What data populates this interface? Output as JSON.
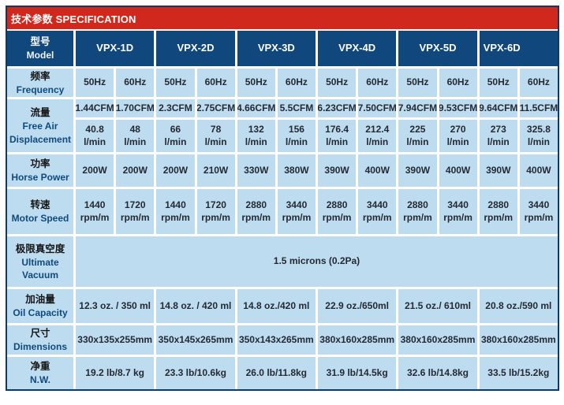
{
  "title": "技术参数 SPECIFICATION",
  "colors": {
    "header_red": "#d1281e",
    "header_blue": "#10477d",
    "cell_blue": "#bedcf0"
  },
  "table": {
    "model": {
      "label_zh": "型号",
      "label_en": "Model",
      "values": [
        "VPX-1D",
        "VPX-2D",
        "VPX-3D",
        "VPX-4D",
        "VPX-5D",
        "VPX-6D"
      ]
    },
    "frequency": {
      "label_zh": "频率",
      "label_en": "Frequency",
      "values": [
        "50Hz",
        "60Hz",
        "50Hz",
        "60Hz",
        "50Hz",
        "60Hz",
        "50Hz",
        "60Hz",
        "50Hz",
        "60Hz",
        "50Hz",
        "60Hz"
      ]
    },
    "flow": {
      "label_zh": "流量",
      "label_en1": "Free Air",
      "label_en2": "Displacement",
      "cfm": [
        "1.44CFM",
        "1.70CFM",
        "2.3CFM",
        "2.75CFM",
        "4.66CFM",
        "5.5CFM",
        "6.23CFM",
        "7.50CFM",
        "7.94CFM",
        "9.53CFM",
        "9.64CFM",
        "11.5CFM"
      ],
      "lmin": [
        "40.8",
        "48",
        "66",
        "78",
        "132",
        "156",
        "176.4",
        "212.4",
        "225",
        "270",
        "273",
        "325.8"
      ],
      "lmin_unit": "l/min"
    },
    "power": {
      "label_zh": "功率",
      "label_en": "Horse Power",
      "values": [
        "200W",
        "200W",
        "200W",
        "210W",
        "330W",
        "380W",
        "390W",
        "400W",
        "390W",
        "400W",
        "390W",
        "400W"
      ]
    },
    "speed": {
      "label_zh": "转速",
      "label_en": "Motor Speed",
      "values": [
        "1440",
        "1720",
        "1440",
        "1720",
        "2880",
        "3440",
        "2880",
        "3440",
        "2880",
        "3440",
        "2880",
        "3440"
      ],
      "unit": "rpm/m"
    },
    "vacuum": {
      "label_zh": "极限真空度",
      "label_en1": "Ultimate",
      "label_en2": "Vacuum",
      "value": "1.5 microns (0.2Pa)"
    },
    "oil": {
      "label_zh": "加油量",
      "label_en": "Oil Capacity",
      "values": [
        "12.3 oz. / 350 ml",
        "14.8 oz. / 420 ml",
        "14.8 oz./420 ml",
        "22.9 oz./650ml",
        "21.5 oz./ 610ml",
        "20.8 oz./590 ml"
      ]
    },
    "dimensions": {
      "label_zh": "尺寸",
      "label_en": "Dimensions",
      "values": [
        "330x135x255mm",
        "350x145x265mm",
        "350x143x265mm",
        "380x160x285mm",
        "380x160x285mm",
        "380x160x285mm"
      ]
    },
    "nw": {
      "label_zh": "净重",
      "label_en": "N.W.",
      "values": [
        "19.2 lb/8.7 kg",
        "23.3 lb/10.6kg",
        "26.0 lb/11.8kg",
        "31.9 lb/14.5kg",
        "32.6 lb/14.8kg",
        "33.5 lb/15.2kg"
      ]
    }
  }
}
